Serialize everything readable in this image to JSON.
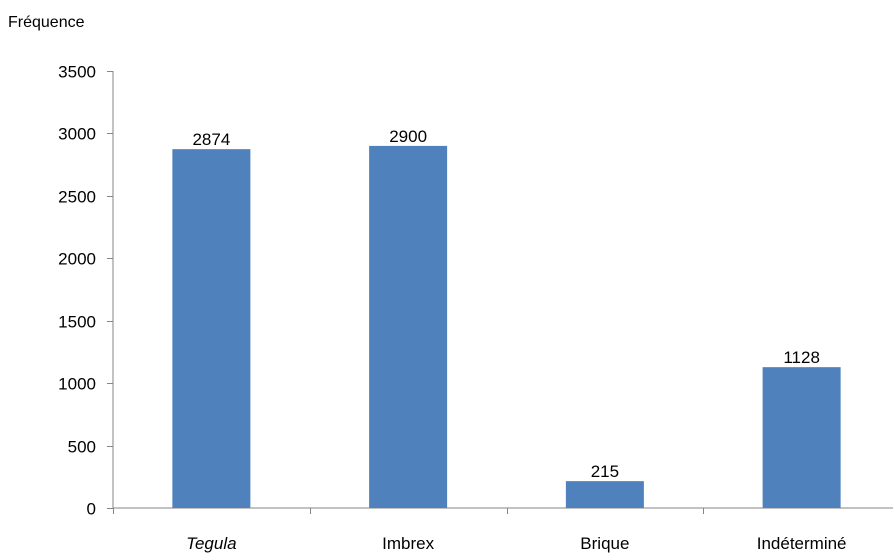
{
  "chart_data": {
    "type": "bar",
    "ylabel": "Fréquence",
    "xlabel": "",
    "categories": [
      "Tegula",
      "Imbrex",
      "Brique",
      "Indéterminé"
    ],
    "category_italic": [
      true,
      false,
      false,
      false
    ],
    "values": [
      2874,
      2900,
      215,
      1128
    ],
    "data_labels": [
      "2874",
      "2900",
      "215",
      "1128"
    ],
    "ylim": [
      0,
      3500
    ],
    "yticks": [
      0,
      500,
      1000,
      1500,
      2000,
      2500,
      3000,
      3500
    ],
    "ytick_labels": [
      "0",
      "500",
      "1000",
      "1500",
      "2000",
      "2500",
      "3000",
      "3500"
    ],
    "bar_color": "#4f81bd",
    "grid": false,
    "legend": "none"
  }
}
